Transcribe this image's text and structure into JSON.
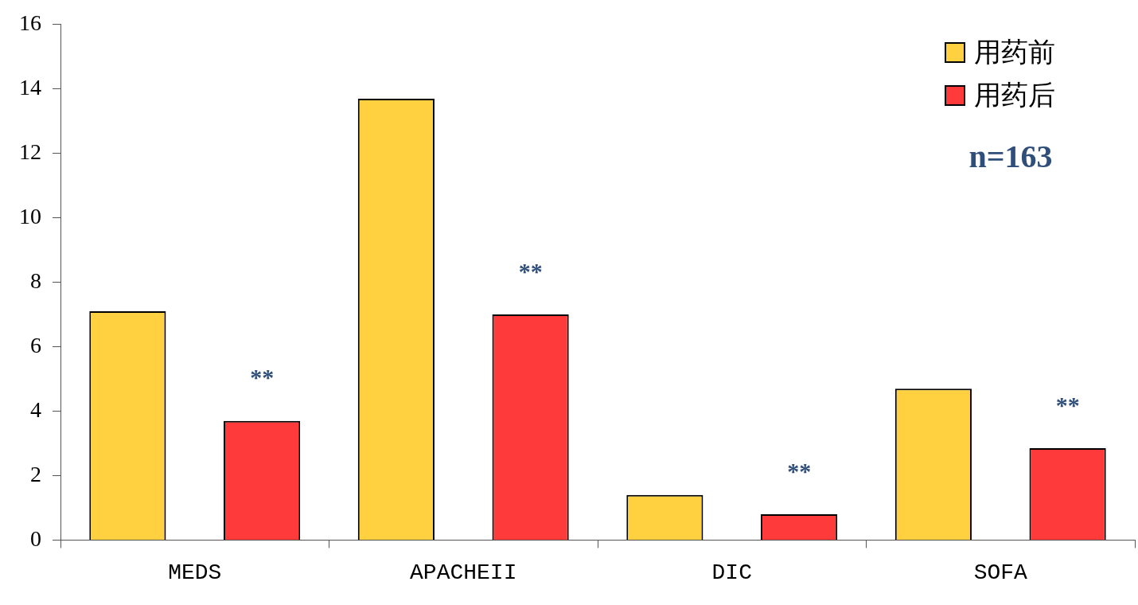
{
  "chart_data": {
    "type": "bar",
    "categories": [
      "MEDS",
      "APACHEII",
      "DIC",
      "SOFA"
    ],
    "series": [
      {
        "name": "用药前",
        "color": "#ffd040",
        "values": [
          7.1,
          13.7,
          1.4,
          4.7
        ]
      },
      {
        "name": "用药后",
        "color": "#ff3a3a",
        "values": [
          3.7,
          7.0,
          0.8,
          2.85
        ]
      }
    ],
    "ylim": [
      0,
      16
    ],
    "yticks": [
      0,
      2,
      4,
      6,
      8,
      10,
      12,
      14,
      16
    ],
    "grid": false,
    "legend": "top right",
    "annotations": [
      "**",
      "**",
      "**",
      "**",
      "n=163"
    ]
  }
}
